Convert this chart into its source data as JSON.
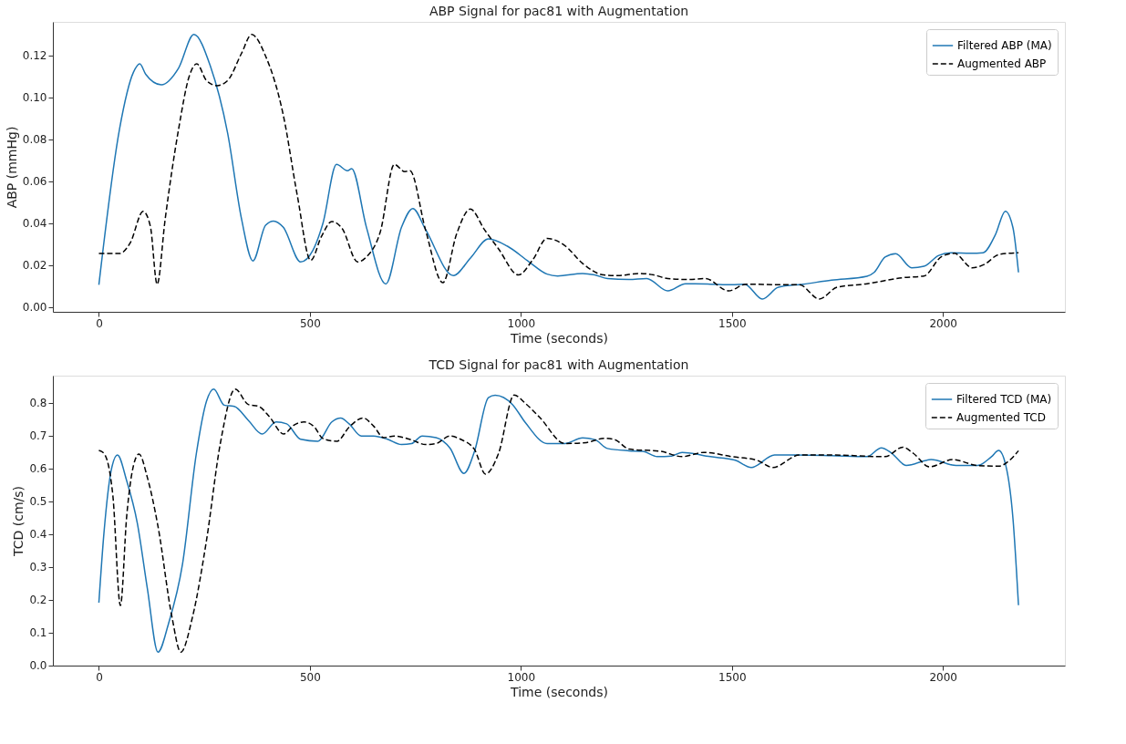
{
  "chart_data": [
    {
      "type": "line",
      "title": "ABP Signal for pac81 with Augmentation",
      "xlabel": "Time (seconds)",
      "ylabel": "ABP (mmHg)",
      "xlim": [
        -109,
        2289
      ],
      "xticks": [
        0,
        500,
        1000,
        1500,
        2000
      ],
      "ylim": [
        -0.0023,
        0.136
      ],
      "yticks": [
        {
          "value": 0,
          "label": "0.00"
        },
        {
          "value": 0.02,
          "label": "0.02"
        },
        {
          "value": 0.04,
          "label": "0.04"
        },
        {
          "value": 0.06,
          "label": "0.06"
        },
        {
          "value": 0.08,
          "label": "0.08"
        },
        {
          "value": 0.1,
          "label": "0.10"
        },
        {
          "value": 0.12,
          "label": "0.12"
        }
      ],
      "grid": false,
      "legend": "top right",
      "series": [
        {
          "name": "Filtered ABP (MA)",
          "color": "#1f77b4",
          "line_style": "solid",
          "x": [
            0,
            49,
            82,
            97,
            111,
            148,
            189,
            225,
            264,
            305,
            338,
            365,
            395,
            414,
            437,
            478,
            507,
            531,
            563,
            589,
            599,
            634,
            680,
            717,
            744,
            774,
            840,
            881,
            923,
            968,
            1019,
            1062,
            1087,
            1146,
            1175,
            1205,
            1256,
            1298,
            1348,
            1390,
            1449,
            1500,
            1530,
            1572,
            1610,
            1669,
            1736,
            1820,
            1837,
            1863,
            1888,
            1926,
            1955,
            1989,
            2019,
            2065,
            2095,
            2124,
            2148,
            2166,
            2179
          ],
          "values": [
            0.0106,
            0.085,
            0.112,
            0.116,
            0.111,
            0.106,
            0.114,
            0.13,
            0.115,
            0.083,
            0.042,
            0.022,
            0.039,
            0.041,
            0.038,
            0.0215,
            0.027,
            0.04,
            0.068,
            0.065,
            0.066,
            0.038,
            0.011,
            0.038,
            0.047,
            0.037,
            0.015,
            0.0235,
            0.0325,
            0.029,
            0.0216,
            0.0157,
            0.0148,
            0.016,
            0.0153,
            0.0136,
            0.0131,
            0.0136,
            0.0077,
            0.0111,
            0.0109,
            0.0106,
            0.0109,
            0.0038,
            0.0094,
            0.0109,
            0.0128,
            0.0147,
            0.0165,
            0.0238,
            0.0254,
            0.0187,
            0.0194,
            0.0245,
            0.0259,
            0.0256,
            0.0259,
            0.0344,
            0.0457,
            0.0377,
            0.0165
          ]
        },
        {
          "name": "Augmented ABP",
          "color": "#000000",
          "line_style": "dashed",
          "x": [
            0,
            49,
            74,
            105,
            122,
            138,
            157,
            189,
            214,
            232,
            255,
            280,
            305,
            338,
            362,
            395,
            437,
            470,
            502,
            527,
            552,
            576,
            613,
            634,
            667,
            700,
            725,
            737,
            774,
            815,
            848,
            880,
            914,
            947,
            994,
            1028,
            1062,
            1104,
            1146,
            1196,
            1230,
            1281,
            1315,
            1348,
            1399,
            1437,
            1492,
            1534,
            1618,
            1660,
            1707,
            1749,
            1820,
            1905,
            1955,
            1997,
            2027,
            2069,
            2099,
            2132,
            2179
          ],
          "values": [
            0.0255,
            0.0255,
            0.0305,
            0.0456,
            0.0385,
            0.0108,
            0.0418,
            0.085,
            0.11,
            0.116,
            0.108,
            0.1056,
            0.108,
            0.121,
            0.13,
            0.1197,
            0.0915,
            0.0534,
            0.0222,
            0.0335,
            0.0408,
            0.0376,
            0.0215,
            0.0239,
            0.036,
            0.068,
            0.0646,
            0.065,
            0.0368,
            0.0116,
            0.0351,
            0.0467,
            0.0368,
            0.0277,
            0.0153,
            0.0225,
            0.0327,
            0.0293,
            0.0208,
            0.0153,
            0.015,
            0.016,
            0.0153,
            0.0136,
            0.0131,
            0.0136,
            0.0077,
            0.0109,
            0.0106,
            0.0106,
            0.0038,
            0.0094,
            0.0111,
            0.014,
            0.0148,
            0.0241,
            0.0256,
            0.0187,
            0.0204,
            0.025,
            0.0259
          ]
        }
      ]
    },
    {
      "type": "line",
      "title": "TCD Signal for pac81 with Augmentation",
      "xlabel": "Time (seconds)",
      "ylabel": "TCD (cm/s)",
      "xlim": [
        -109,
        2289
      ],
      "xticks": [
        0,
        500,
        1000,
        1500,
        2000
      ],
      "ylim": [
        -0.001,
        0.883
      ],
      "yticks": [
        {
          "value": 0,
          "label": "0.0"
        },
        0.1,
        0.2,
        0.3,
        0.4,
        0.5,
        0.6,
        0.7,
        0.8
      ],
      "grid": false,
      "legend": "top right",
      "series": [
        {
          "name": "Filtered TCD (MA)",
          "color": "#1f77b4",
          "line_style": "solid",
          "x": [
            0,
            12,
            29,
            44,
            66,
            91,
            115,
            140,
            165,
            198,
            231,
            255,
            272,
            297,
            321,
            354,
            387,
            420,
            445,
            478,
            519,
            552,
            573,
            593,
            622,
            651,
            684,
            717,
            741,
            766,
            799,
            832,
            865,
            890,
            923,
            939,
            980,
            1011,
            1062,
            1104,
            1146,
            1175,
            1205,
            1256,
            1289,
            1323,
            1357,
            1382,
            1449,
            1508,
            1546,
            1601,
            1652,
            1736,
            1820,
            1854,
            1879,
            1913,
            1972,
            2031,
            2082,
            2115,
            2132,
            2149,
            2166,
            2179
          ],
          "values": [
            0.191,
            0.403,
            0.593,
            0.641,
            0.562,
            0.434,
            0.233,
            0.04,
            0.127,
            0.307,
            0.646,
            0.805,
            0.842,
            0.793,
            0.789,
            0.747,
            0.705,
            0.742,
            0.736,
            0.689,
            0.683,
            0.742,
            0.754,
            0.736,
            0.699,
            0.699,
            0.689,
            0.673,
            0.676,
            0.699,
            0.694,
            0.662,
            0.585,
            0.652,
            0.816,
            0.823,
            0.795,
            0.739,
            0.676,
            0.676,
            0.693,
            0.688,
            0.661,
            0.654,
            0.652,
            0.636,
            0.638,
            0.649,
            0.636,
            0.625,
            0.603,
            0.641,
            0.641,
            0.639,
            0.636,
            0.663,
            0.646,
            0.609,
            0.627,
            0.609,
            0.609,
            0.636,
            0.655,
            0.609,
            0.446,
            0.183
          ]
        },
        {
          "name": "Augmented TCD",
          "color": "#000000",
          "line_style": "dashed",
          "x": [
            0,
            12,
            33,
            51,
            66,
            82,
            95,
            115,
            140,
            173,
            194,
            222,
            255,
            288,
            323,
            354,
            379,
            404,
            438,
            461,
            486,
            511,
            531,
            564,
            593,
            626,
            651,
            675,
            700,
            741,
            774,
            799,
            832,
            857,
            890,
            916,
            947,
            984,
            1011,
            1045,
            1104,
            1155,
            1197,
            1222,
            1256,
            1332,
            1382,
            1433,
            1500,
            1559,
            1597,
            1660,
            1736,
            1863,
            1905,
            1930,
            1968,
            2023,
            2082,
            2132,
            2158,
            2179
          ],
          "values": [
            0.655,
            0.646,
            0.519,
            0.182,
            0.456,
            0.609,
            0.644,
            0.572,
            0.424,
            0.148,
            0.04,
            0.148,
            0.381,
            0.678,
            0.842,
            0.795,
            0.789,
            0.758,
            0.705,
            0.731,
            0.742,
            0.726,
            0.691,
            0.683,
            0.726,
            0.754,
            0.729,
            0.694,
            0.699,
            0.687,
            0.673,
            0.676,
            0.699,
            0.689,
            0.658,
            0.583,
            0.646,
            0.824,
            0.798,
            0.755,
            0.676,
            0.679,
            0.692,
            0.688,
            0.659,
            0.652,
            0.636,
            0.649,
            0.636,
            0.625,
            0.603,
            0.641,
            0.641,
            0.636,
            0.665,
            0.646,
            0.605,
            0.627,
            0.609,
            0.607,
            0.625,
            0.654
          ]
        }
      ]
    }
  ]
}
